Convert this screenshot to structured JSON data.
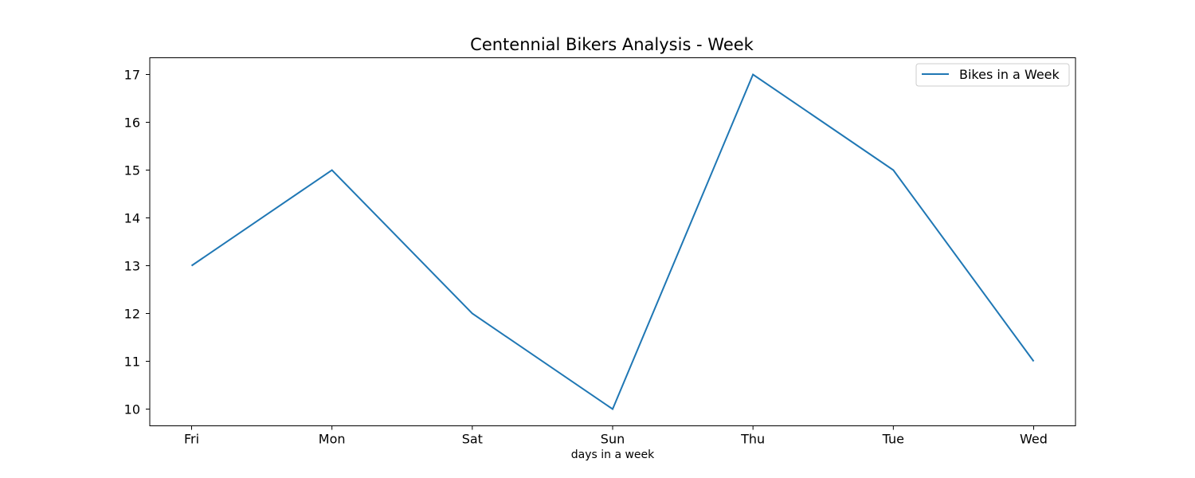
{
  "chart_data": {
    "type": "line",
    "title": "Centennial Bikers Analysis - Week",
    "xlabel": "days in a week",
    "ylabel": "",
    "categories": [
      "Fri",
      "Mon",
      "Sat",
      "Sun",
      "Thu",
      "Tue",
      "Wed"
    ],
    "series": [
      {
        "name": "Bikes in a Week",
        "values": [
          13,
          15,
          12,
          10,
          17,
          15,
          11
        ],
        "color": "#1f77b4"
      }
    ],
    "yticks": [
      10,
      11,
      12,
      13,
      14,
      15,
      16,
      17
    ],
    "ylim": [
      9.65,
      17.35
    ],
    "grid": false,
    "legend_position": "top-right"
  }
}
